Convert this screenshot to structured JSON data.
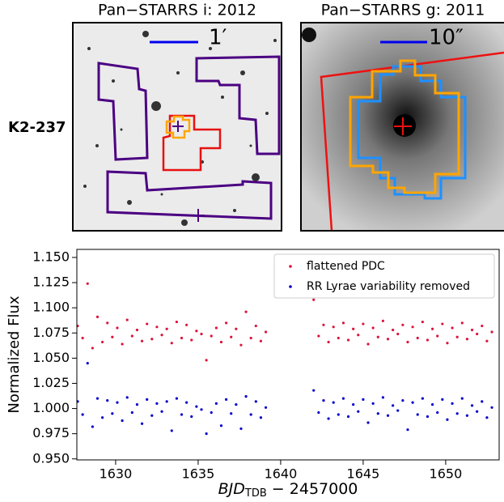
{
  "header": {
    "row_label": "K2-237"
  },
  "panels": [
    {
      "title": "Pan−STARRS i: 2012",
      "scale_label": "1′"
    },
    {
      "title": "Pan−STARRS g: 2011",
      "scale_label": "10″"
    }
  ],
  "chart_data": {
    "type": "scatter",
    "ylabel": "Normalized Flux",
    "xlabel": {
      "main": "BJD",
      "sub": "TDB",
      "rest": " − 2457000"
    },
    "x": [
      1627.7,
      1628.0,
      1628.3,
      1628.6,
      1628.9,
      1629.2,
      1629.5,
      1629.8,
      1630.1,
      1630.4,
      1630.7,
      1631.0,
      1631.3,
      1631.6,
      1631.9,
      1632.2,
      1632.5,
      1632.8,
      1633.1,
      1633.4,
      1633.7,
      1634.0,
      1634.3,
      1634.6,
      1634.9,
      1635.2,
      1635.5,
      1635.8,
      1636.1,
      1636.4,
      1636.7,
      1637.0,
      1637.3,
      1637.6,
      1637.9,
      1638.2,
      1638.5,
      1638.8,
      1639.1,
      1642.0,
      1642.3,
      1642.6,
      1642.9,
      1643.2,
      1643.5,
      1643.8,
      1644.1,
      1644.4,
      1644.7,
      1645.0,
      1645.3,
      1645.6,
      1645.9,
      1646.2,
      1646.5,
      1646.8,
      1647.1,
      1647.4,
      1647.7,
      1648.0,
      1648.3,
      1648.6,
      1648.9,
      1649.2,
      1649.5,
      1649.8,
      1650.1,
      1650.4,
      1650.7,
      1651.0,
      1651.3,
      1651.6,
      1651.9,
      1652.2,
      1652.5,
      1652.8
    ],
    "series": [
      {
        "name": "flattened PDC",
        "color": "#dc143c",
        "values": [
          1.082,
          1.07,
          1.124,
          1.06,
          1.091,
          1.066,
          1.085,
          1.071,
          1.08,
          1.064,
          1.088,
          1.072,
          1.078,
          1.067,
          1.084,
          1.069,
          1.081,
          1.073,
          1.079,
          1.065,
          1.086,
          1.07,
          1.083,
          1.068,
          1.077,
          1.074,
          1.048,
          1.072,
          1.08,
          1.066,
          1.085,
          1.071,
          1.079,
          1.063,
          1.096,
          1.07,
          1.082,
          1.067,
          1.076,
          1.108,
          1.072,
          1.083,
          1.066,
          1.081,
          1.07,
          1.085,
          1.068,
          1.079,
          1.073,
          1.084,
          1.064,
          1.08,
          1.071,
          1.087,
          1.069,
          1.078,
          1.074,
          1.083,
          1.066,
          1.081,
          1.07,
          1.086,
          1.068,
          1.079,
          1.072,
          1.084,
          1.065,
          1.08,
          1.071,
          1.085,
          1.069,
          1.078,
          1.074,
          1.082,
          1.067,
          1.076
        ]
      },
      {
        "name": "RR Lyrae variability removed",
        "color": "#0000cd",
        "values": [
          1.007,
          0.994,
          1.045,
          0.982,
          1.01,
          0.991,
          1.008,
          0.995,
          1.006,
          0.988,
          1.011,
          0.996,
          1.004,
          0.985,
          1.009,
          0.993,
          1.005,
          0.997,
          1.007,
          0.978,
          1.01,
          0.994,
          1.006,
          0.992,
          1.002,
          0.999,
          0.975,
          0.996,
          1.005,
          0.983,
          1.009,
          0.995,
          1.004,
          0.98,
          1.012,
          0.994,
          1.007,
          0.991,
          1.001,
          1.018,
          0.996,
          1.008,
          0.99,
          1.006,
          0.994,
          1.01,
          0.992,
          1.004,
          0.997,
          1.009,
          0.986,
          1.005,
          0.995,
          1.011,
          0.993,
          1.003,
          0.998,
          1.008,
          0.979,
          1.006,
          0.994,
          1.01,
          0.992,
          1.004,
          0.996,
          1.009,
          0.989,
          1.005,
          0.995,
          1.01,
          0.993,
          1.003,
          0.997,
          1.007,
          0.991,
          1.001
        ]
      }
    ],
    "xlim": [
      1627.65,
      1653.24
    ],
    "ylim": [
      0.949,
      1.158
    ],
    "xticks": [
      1630,
      1635,
      1640,
      1645,
      1650
    ],
    "yticks": [
      {
        "value": 0.95,
        "label": "0.950"
      },
      {
        "value": 0.975,
        "label": "0.975"
      },
      {
        "value": 1.0,
        "label": "1.000"
      },
      {
        "value": 1.025,
        "label": "1.025"
      },
      {
        "value": 1.05,
        "label": "1.050"
      },
      {
        "value": 1.075,
        "label": "1.075"
      },
      {
        "value": 1.1,
        "label": "1.100"
      },
      {
        "value": 1.125,
        "label": "1.125"
      },
      {
        "value": 1.15,
        "label": "1.150"
      }
    ],
    "legend": "upper right"
  }
}
